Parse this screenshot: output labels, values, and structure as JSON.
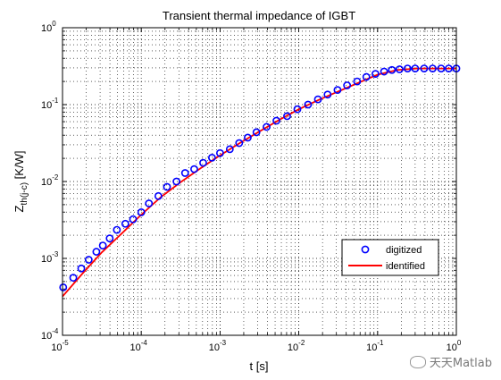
{
  "chart_data": {
    "type": "line",
    "title": "Transient thermal impedance of IGBT",
    "xlabel": "t [s]",
    "ylabel": "Z",
    "ylabel_sub": "th(j-c)",
    "ylabel_unit": " [K/W]",
    "xscale": "log",
    "yscale": "log",
    "xlim": [
      1e-05,
      1
    ],
    "ylim": [
      0.0001,
      1
    ],
    "grid": true,
    "legend_position": "lower-right",
    "x_ticks": [
      {
        "value": 1e-05,
        "base": "10",
        "exp": "-5"
      },
      {
        "value": 0.0001,
        "base": "10",
        "exp": "-4"
      },
      {
        "value": 0.001,
        "base": "10",
        "exp": "-3"
      },
      {
        "value": 0.01,
        "base": "10",
        "exp": "-2"
      },
      {
        "value": 0.1,
        "base": "10",
        "exp": "-1"
      },
      {
        "value": 1,
        "base": "10",
        "exp": "0"
      }
    ],
    "y_ticks": [
      {
        "value": 0.0001,
        "base": "10",
        "exp": "-4"
      },
      {
        "value": 0.001,
        "base": "10",
        "exp": "-3"
      },
      {
        "value": 0.01,
        "base": "10",
        "exp": "-2"
      },
      {
        "value": 0.1,
        "base": "10",
        "exp": "-1"
      },
      {
        "value": 1,
        "base": "10",
        "exp": "0"
      }
    ],
    "series": [
      {
        "name": "digitized",
        "marker": "circle",
        "color": "#0000ff",
        "x": [
          1.02e-05,
          1.37e-05,
          1.73e-05,
          2.15e-05,
          2.69e-05,
          3.25e-05,
          3.97e-05,
          4.9e-05,
          6.27e-05,
          7.87e-05,
          0.0001,
          0.000125,
          0.000165,
          0.000212,
          0.00028,
          0.00036,
          0.00047,
          0.00061,
          0.00079,
          0.001,
          0.00133,
          0.00175,
          0.00225,
          0.0029,
          0.0039,
          0.0052,
          0.0071,
          0.0096,
          0.0131,
          0.0175,
          0.0232,
          0.031,
          0.041,
          0.055,
          0.072,
          0.094,
          0.121,
          0.152,
          0.19,
          0.24,
          0.3,
          0.39,
          0.5,
          0.64,
          0.8,
          1.0
        ],
        "y": [
          0.00042,
          0.00056,
          0.00074,
          0.00096,
          0.00122,
          0.00147,
          0.00182,
          0.00235,
          0.00282,
          0.00323,
          0.00398,
          0.00519,
          0.00646,
          0.00851,
          0.01,
          0.0129,
          0.0145,
          0.0175,
          0.0204,
          0.0234,
          0.0263,
          0.0316,
          0.0372,
          0.0437,
          0.0513,
          0.0617,
          0.0708,
          0.0871,
          0.1,
          0.117,
          0.135,
          0.155,
          0.178,
          0.2,
          0.229,
          0.251,
          0.269,
          0.282,
          0.288,
          0.295,
          0.295,
          0.295,
          0.295,
          0.295,
          0.295,
          0.295
        ]
      },
      {
        "name": "identified",
        "marker": "line",
        "color": "#ff0000",
        "x": [
          1e-05,
          1.78e-05,
          3.16e-05,
          5.62e-05,
          0.0001,
          0.000178,
          0.000316,
          0.000562,
          0.001,
          0.00178,
          0.00316,
          0.00562,
          0.01,
          0.0178,
          0.0316,
          0.0562,
          0.1,
          0.178,
          0.316,
          0.562,
          1.0
        ],
        "y": [
          0.00032,
          0.00063,
          0.0012,
          0.0021,
          0.0037,
          0.0063,
          0.0098,
          0.0148,
          0.0219,
          0.0316,
          0.0447,
          0.0631,
          0.0871,
          0.115,
          0.148,
          0.191,
          0.245,
          0.282,
          0.295,
          0.295,
          0.295
        ]
      }
    ]
  },
  "watermark": {
    "text": "天天Matlab"
  }
}
